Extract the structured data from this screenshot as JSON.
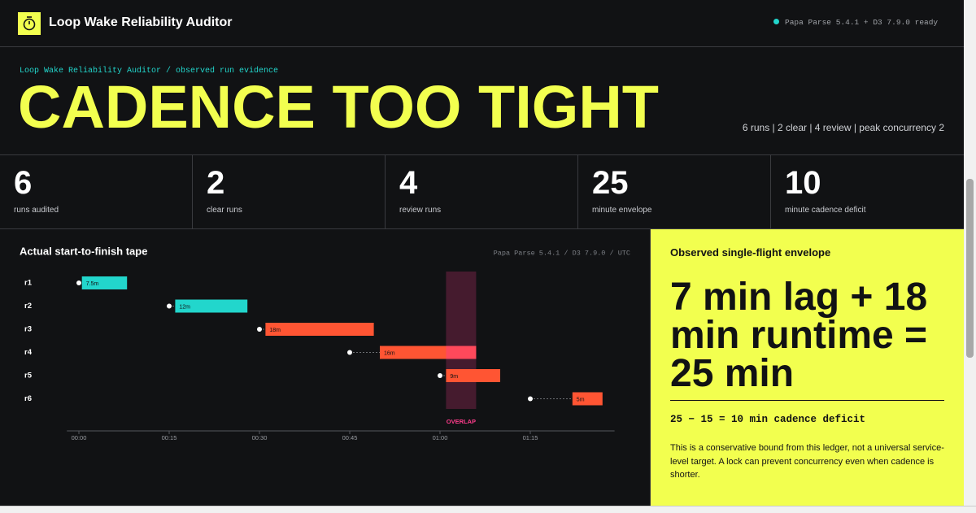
{
  "header": {
    "title": "Loop Wake Reliability Auditor",
    "status": "Papa Parse 5.4.1 + D3 7.9.0 ready"
  },
  "hero": {
    "breadcrumb": "Loop Wake Reliability Auditor / observed run evidence",
    "headline": "CADENCE TOO TIGHT",
    "summary": "6 runs | 2 clear | 4 review | peak concurrency 2"
  },
  "stats": [
    {
      "value": 6,
      "label": "runs audited"
    },
    {
      "value": 2,
      "label": "clear runs"
    },
    {
      "value": 4,
      "label": "review runs"
    },
    {
      "value": 25,
      "label": "minute envelope"
    },
    {
      "value": 10,
      "label": "minute cadence deficit"
    }
  ],
  "chart_data": {
    "type": "timeline",
    "title": "Actual start-to-finish tape",
    "source": "Papa Parse 5.4.1 / D3 7.9.0 / UTC",
    "categories": [
      "r1",
      "r2",
      "r3",
      "r4",
      "r5",
      "r6"
    ],
    "scheduled": [
      0,
      15,
      30,
      45,
      60,
      75
    ],
    "starts": [
      0.5,
      16,
      31,
      50,
      61,
      82
    ],
    "values": [
      7.5,
      12,
      18,
      16,
      9,
      5
    ],
    "value_labels": [
      "7.5m",
      "12m",
      "18m",
      "16m",
      "9m",
      "5m"
    ],
    "colors": [
      "#22d6cc",
      "#22d6cc",
      "#ff5533",
      "#ff5533",
      "#ff5533",
      "#ff5533"
    ],
    "overlap": {
      "label": "OVERLAP",
      "start": 61,
      "end": 66,
      "color": "#ff3c8c"
    },
    "xlim": [
      -2,
      89
    ],
    "xticks": [
      {
        "value": 0,
        "label": "00:00"
      },
      {
        "value": 15,
        "label": "00:15"
      },
      {
        "value": 30,
        "label": "00:30"
      },
      {
        "value": 45,
        "label": "00:45"
      },
      {
        "value": 60,
        "label": "01:00"
      },
      {
        "value": 75,
        "label": "01:15"
      }
    ]
  },
  "envelope": {
    "title": "Observed single-flight envelope",
    "equation": "7 min lag + 18 min runtime = 25 min",
    "deficit": "25 − 15 = 10 min cadence deficit",
    "note": "This is a conservative bound from this ledger, not a universal service-level target. A lock can prevent concurrency even when cadence is shorter."
  }
}
